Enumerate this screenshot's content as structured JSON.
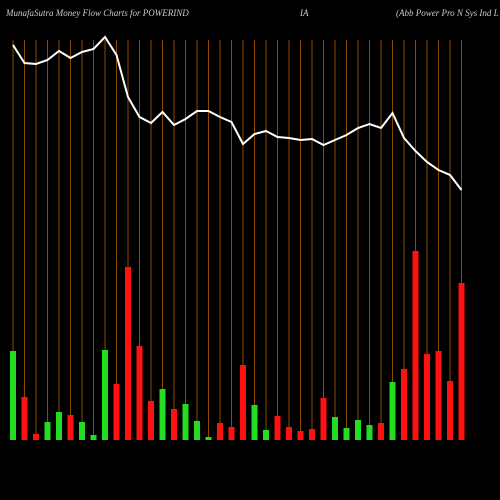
{
  "chart_data": {
    "type": "bar",
    "title": "MunafaSutra  Money Flow  Charts for POWERIND",
    "title_middle": "IA",
    "subtitle": "(Abb Power Pro   N   Sys Ind L",
    "categories": [
      null,
      null,
      null,
      null,
      null,
      null,
      null,
      null,
      null,
      null,
      null,
      null,
      null,
      null,
      null,
      null,
      null,
      null,
      null,
      null,
      null,
      null,
      null,
      null,
      null,
      null,
      null,
      null,
      null,
      null,
      null,
      null,
      null,
      null,
      null,
      null,
      null,
      null,
      null,
      null
    ],
    "series": [
      {
        "name": "flow",
        "values": [
          89,
          43,
          6,
          18,
          28,
          25,
          18,
          5,
          90,
          56,
          173,
          94,
          39,
          51,
          31,
          36,
          19,
          3,
          17,
          13,
          75,
          35,
          10,
          24,
          13,
          9,
          11,
          42,
          23,
          12,
          20,
          15,
          17,
          58,
          71,
          189,
          86,
          89,
          59,
          157
        ],
        "colors": [
          "#22dd22",
          "#ff1111",
          "#ff1111",
          "#22dd22",
          "#22dd22",
          "#ff1111",
          "#22dd22",
          "#22dd22",
          "#22dd22",
          "#ff1111",
          "#ff1111",
          "#ff1111",
          "#ff1111",
          "#22dd22",
          "#ff1111",
          "#22dd22",
          "#22dd22",
          "#22dd22",
          "#ff1111",
          "#ff1111",
          "#ff1111",
          "#22dd22",
          "#22dd22",
          "#ff1111",
          "#ff1111",
          "#ff1111",
          "#ff1111",
          "#ff1111",
          "#22dd22",
          "#22dd22",
          "#22dd22",
          "#22dd22",
          "#ff1111",
          "#22dd22",
          "#ff1111",
          "#ff1111",
          "#ff1111",
          "#ff1111",
          "#ff1111",
          "#ff1111"
        ]
      },
      {
        "name": "price",
        "type": "line",
        "color": "#ffffff",
        "values": [
          395,
          377,
          376,
          380,
          389,
          382,
          388,
          391,
          403,
          385,
          343,
          323,
          317,
          328,
          315,
          321,
          329,
          329,
          323,
          318,
          296,
          306,
          309,
          303,
          302,
          300,
          301,
          295,
          300,
          305,
          312,
          316,
          312,
          327,
          302,
          289,
          278,
          270,
          265,
          250
        ]
      }
    ],
    "ylim": [
      0,
      440
    ],
    "grid_color": "#8b4a00"
  }
}
